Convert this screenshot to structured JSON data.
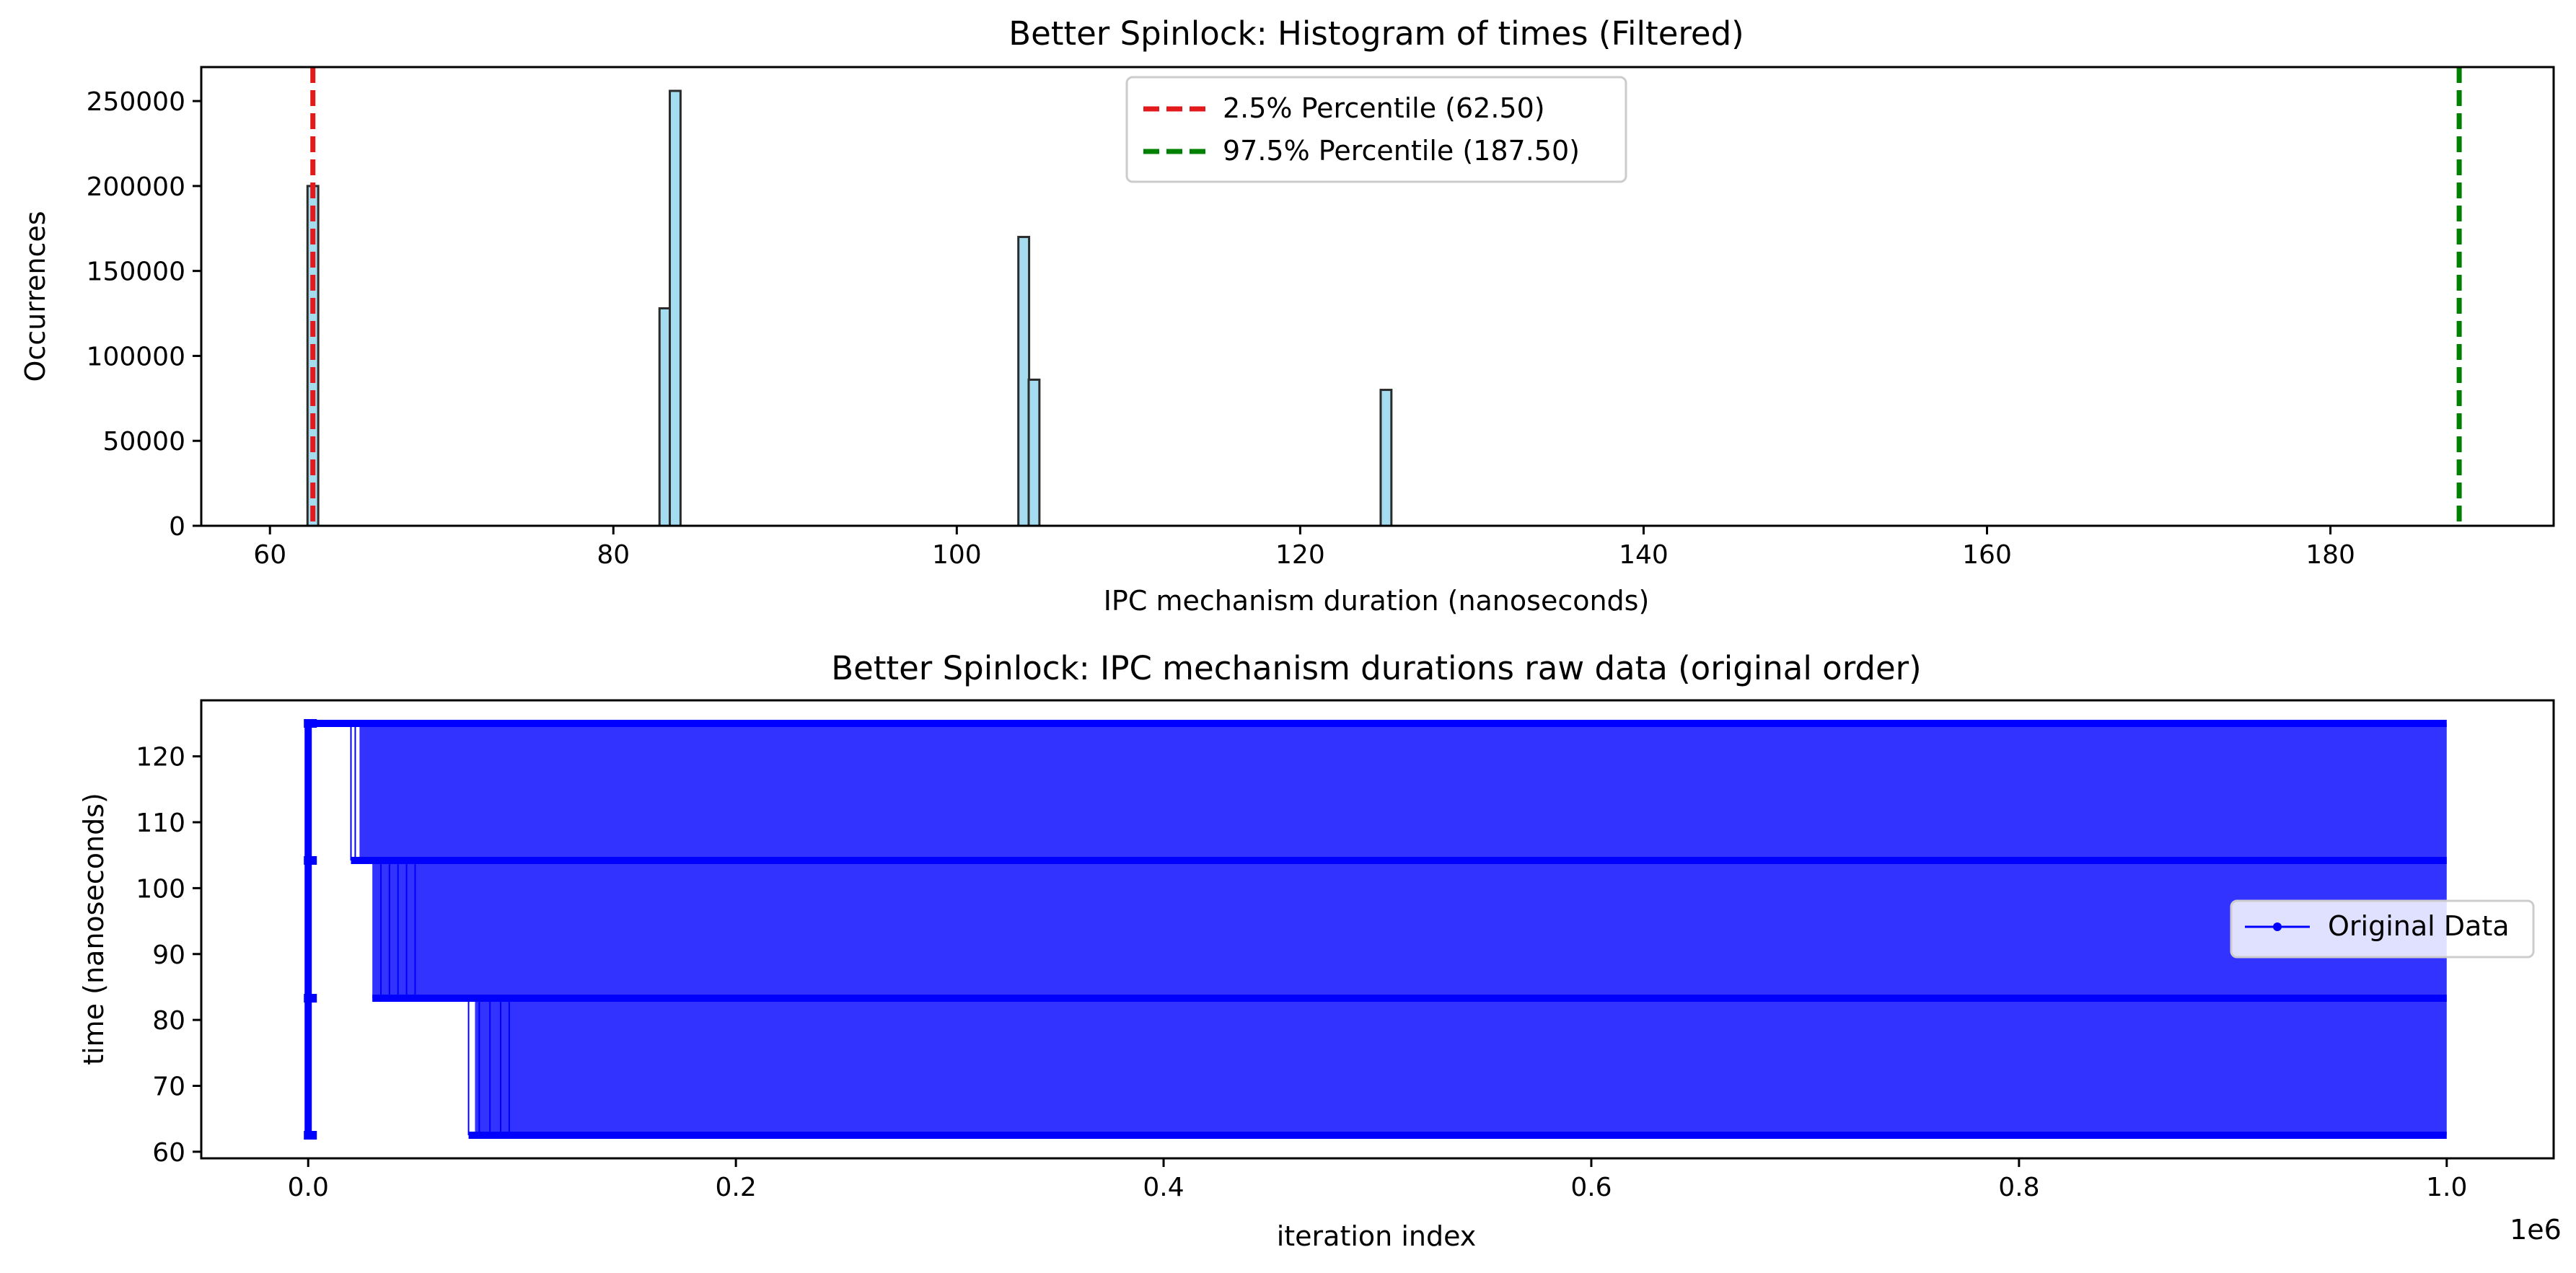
{
  "chart_data": [
    {
      "type": "bar",
      "title": "Better Spinlock: Histogram of times (Filtered)",
      "xlabel": "IPC mechanism duration (nanoseconds)",
      "ylabel": "Occurrences",
      "xlim": [
        56,
        193
      ],
      "ylim": [
        0,
        270000
      ],
      "xticks": [
        60,
        80,
        100,
        120,
        140,
        160,
        180
      ],
      "yticks": [
        0,
        50000,
        100000,
        150000,
        200000,
        250000
      ],
      "grid": false,
      "bin_width": 0.625,
      "bins": [
        {
          "x": 62.5,
          "value": 200000
        },
        {
          "x": 83.0,
          "value": 128000
        },
        {
          "x": 83.6,
          "value": 256000
        },
        {
          "x": 103.9,
          "value": 170000
        },
        {
          "x": 104.5,
          "value": 86000
        },
        {
          "x": 125.0,
          "value": 80000
        }
      ],
      "bar_color": "#a6dcef",
      "bar_edge_color": "#2b2b2b",
      "reference_lines": [
        {
          "x": 62.5,
          "label": "2.5% Percentile (62.50)",
          "color": "#e31a1c"
        },
        {
          "x": 187.5,
          "label": "97.5% Percentile (187.50)",
          "color": "#008000"
        }
      ],
      "legend": "upper-center"
    },
    {
      "type": "line",
      "title": "Better Spinlock: IPC mechanism durations raw data (original order)",
      "xlabel": "iteration index",
      "ylabel": "time (nanoseconds)",
      "x_offset_label": "1e6",
      "xlim": [
        -0.05,
        1.05
      ],
      "ylim": [
        59,
        128.5
      ],
      "xticks": [
        0.0,
        0.2,
        0.4,
        0.6,
        0.8,
        1.0
      ],
      "yticks": [
        60,
        70,
        80,
        90,
        100,
        110,
        120
      ],
      "grid": false,
      "levels": [
        62.5,
        83.3,
        104.2,
        125.0
      ],
      "series": [
        {
          "name": "Original Data",
          "color": "#0000ff",
          "x_range": [
            0,
            1.0
          ]
        }
      ],
      "legend": "center-right"
    }
  ]
}
